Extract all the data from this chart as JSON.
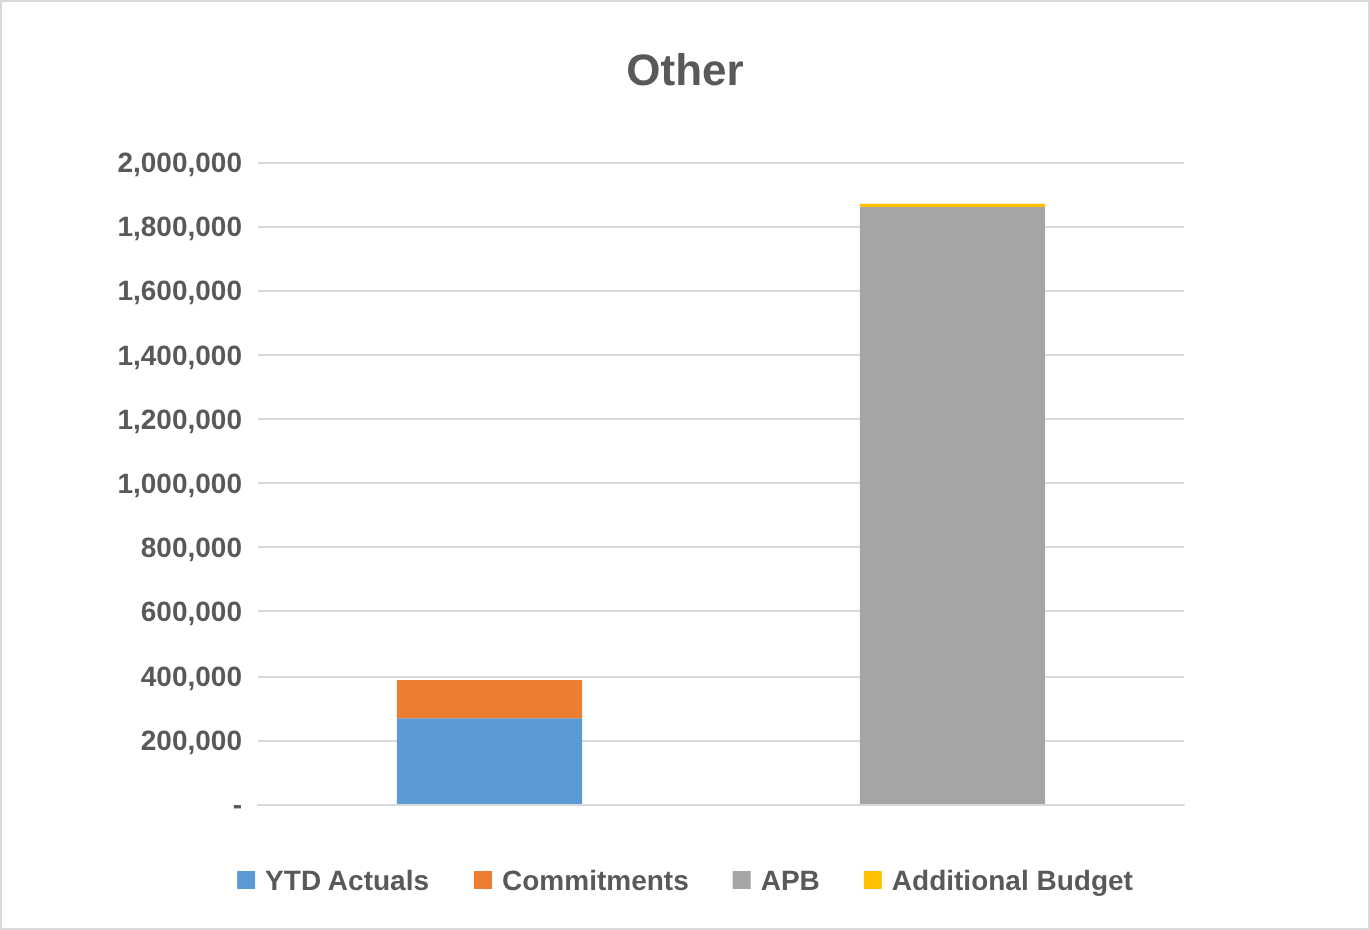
{
  "chart_data": {
    "type": "bar",
    "title": "Other",
    "categories": [
      null,
      null
    ],
    "stacked": true,
    "series": [
      {
        "name": "YTD Actuals",
        "color": "#5b9bd5",
        "values": [
          267000,
          null
        ]
      },
      {
        "name": "Commitments",
        "color": "#ed7d31",
        "values": [
          119000,
          null
        ]
      },
      {
        "name": "APB",
        "color": "#a5a5a5",
        "values": [
          null,
          1860000
        ]
      },
      {
        "name": "Additional Budget",
        "color": "#ffc000",
        "values": [
          null,
          10000
        ]
      }
    ],
    "ylim": [
      0,
      2000000
    ],
    "yticks": [
      {
        "value": 0,
        "label": "-"
      },
      {
        "value": 200000,
        "label": "200,000"
      },
      {
        "value": 400000,
        "label": "400,000"
      },
      {
        "value": 600000,
        "label": "600,000"
      },
      {
        "value": 800000,
        "label": "800,000"
      },
      {
        "value": 1000000,
        "label": "1,000,000"
      },
      {
        "value": 1200000,
        "label": "1,200,000"
      },
      {
        "value": 1400000,
        "label": "1,400,000"
      },
      {
        "value": 1600000,
        "label": "1,600,000"
      },
      {
        "value": 1800000,
        "label": "1,800,000"
      },
      {
        "value": 2000000,
        "label": "2,000,000"
      }
    ],
    "grid": "y",
    "legend": "bottom"
  }
}
